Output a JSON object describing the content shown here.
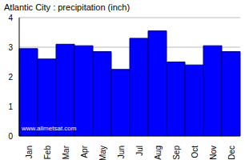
{
  "chart_data": {
    "type": "bar",
    "title": "Atlantic City : precipitation (inch)",
    "categories": [
      "Jan",
      "Feb",
      "Mar",
      "Apr",
      "May",
      "Jun",
      "Jul",
      "Aug",
      "Sep",
      "Oct",
      "Nov",
      "Dec"
    ],
    "values": [
      2.95,
      2.6,
      3.1,
      3.05,
      2.85,
      2.25,
      3.3,
      3.55,
      2.5,
      2.4,
      3.05,
      2.85
    ],
    "color": "#0000ff",
    "ylim": [
      0,
      4
    ],
    "yticks": [
      0,
      1,
      2,
      3,
      4
    ],
    "grid": true,
    "annotations": [
      "www.allmetsat.com"
    ]
  }
}
